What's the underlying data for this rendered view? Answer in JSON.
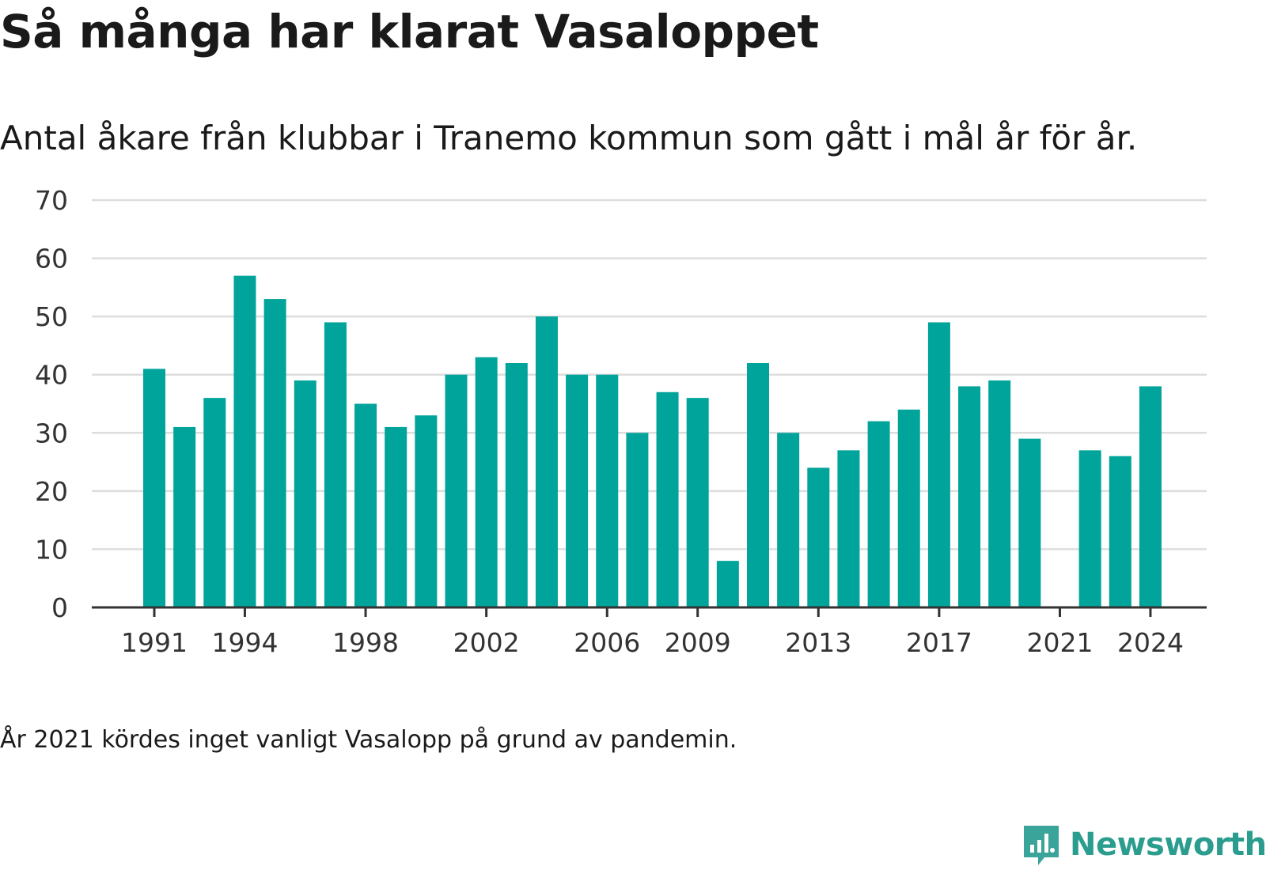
{
  "header": {
    "title": "Så många har klarat Vasaloppet",
    "subtitle": "Antal åkare från klubbar i Tranemo kommun som gått i mål år för år."
  },
  "footer": {
    "note": "År 2021 kördes inget vanligt Vasalopp på grund av pandemin.",
    "brand": "Newsworthy"
  },
  "colors": {
    "bar": "#00a49a",
    "grid": "#dddddd",
    "axis": "#333333",
    "brand": "#2a9d8f"
  },
  "chart_data": {
    "type": "bar",
    "categories": [
      "1991",
      "1992",
      "1993",
      "1994",
      "1995",
      "1996",
      "1997",
      "1998",
      "1999",
      "2000",
      "2001",
      "2002",
      "2003",
      "2004",
      "2005",
      "2006",
      "2007",
      "2008",
      "2009",
      "2010",
      "2011",
      "2012",
      "2013",
      "2014",
      "2015",
      "2016",
      "2017",
      "2018",
      "2019",
      "2020",
      "2021",
      "2022",
      "2023",
      "2024"
    ],
    "values": [
      41,
      31,
      36,
      57,
      53,
      39,
      49,
      35,
      31,
      33,
      40,
      43,
      42,
      50,
      40,
      40,
      30,
      37,
      36,
      8,
      42,
      30,
      24,
      27,
      32,
      34,
      49,
      38,
      39,
      29,
      null,
      27,
      26,
      38
    ],
    "x_tick_labels": [
      "1991",
      "1994",
      "1998",
      "2002",
      "2006",
      "2009",
      "2013",
      "2017",
      "2021",
      "2024"
    ],
    "y_ticks": [
      0,
      10,
      20,
      30,
      40,
      50,
      60,
      70
    ],
    "ylim": [
      0,
      70
    ],
    "grid": true,
    "title": "Så många har klarat Vasaloppet",
    "subtitle": "Antal åkare från klubbar i Tranemo kommun som gått i mål år för år."
  }
}
